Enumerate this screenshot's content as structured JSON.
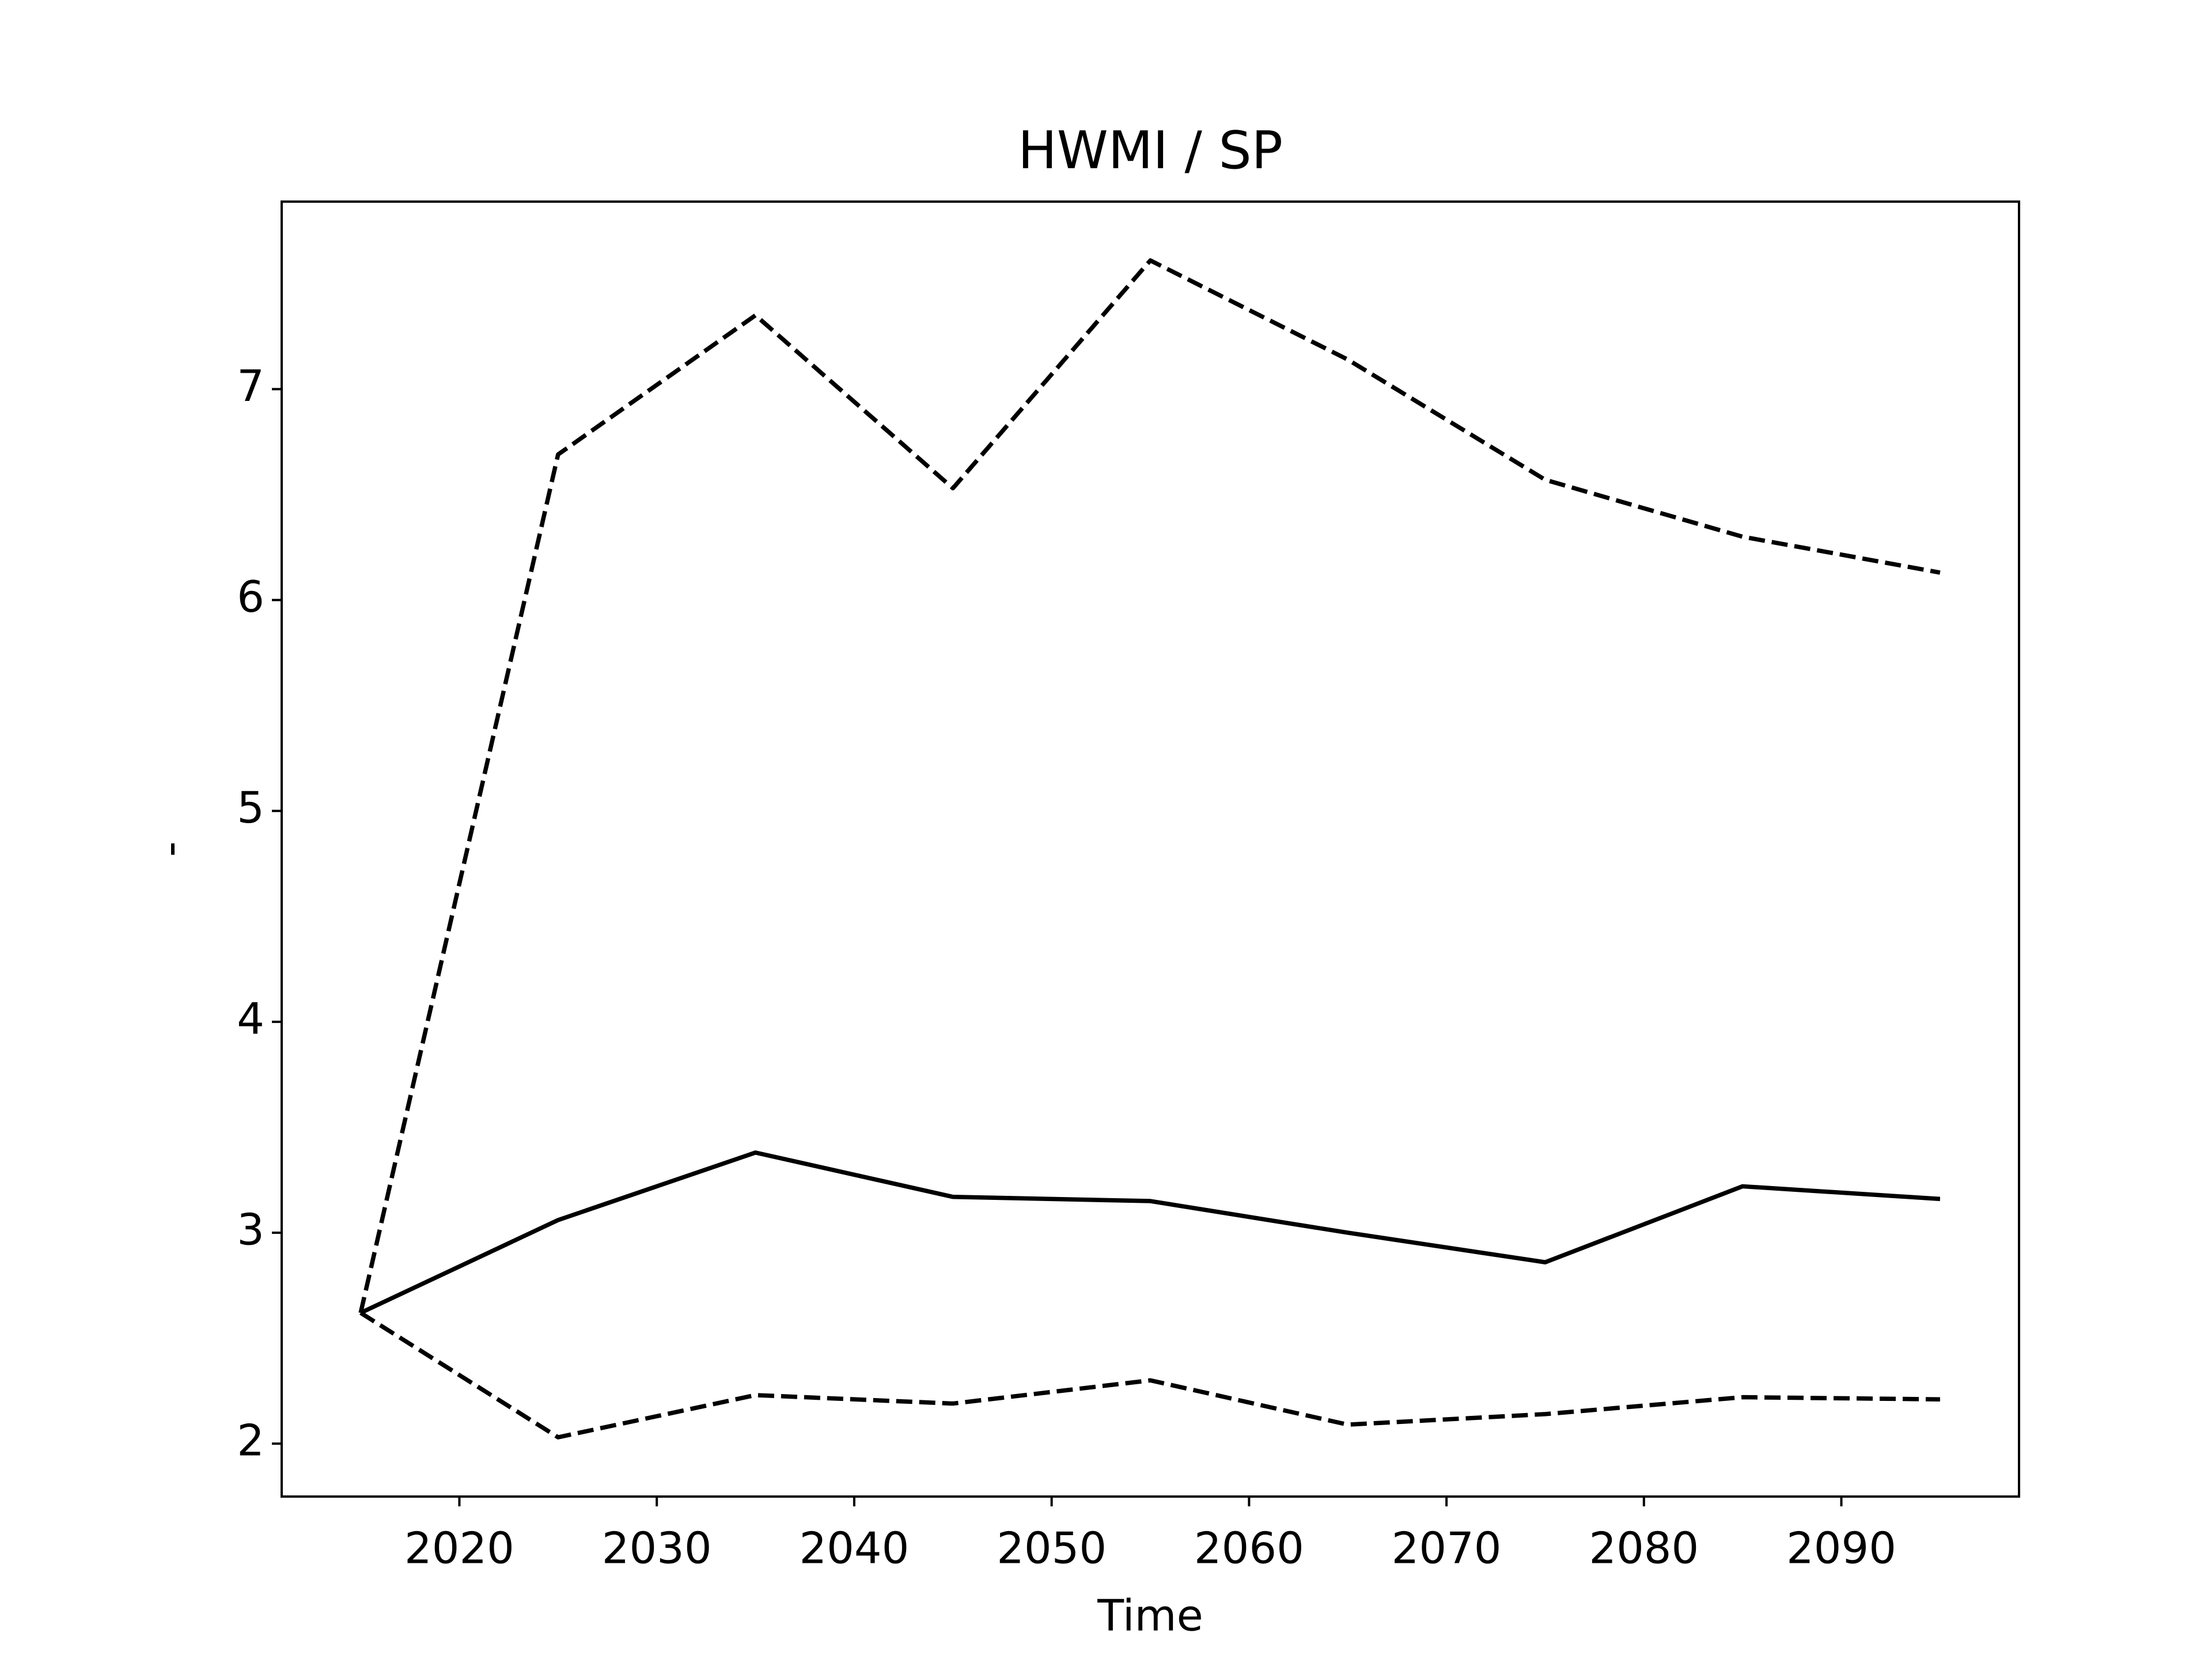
{
  "chart_data": {
    "type": "line",
    "title": "HWMI / SP",
    "xlabel": "Time",
    "ylabel": "-",
    "x": [
      2015,
      2025,
      2035,
      2045,
      2055,
      2065,
      2075,
      2085,
      2095
    ],
    "series": [
      {
        "color": "#000000",
        "style": "solid",
        "values": [
          2.62,
          3.06,
          3.38,
          3.17,
          3.15,
          3.0,
          2.86,
          3.22,
          3.16
        ]
      },
      {
        "color": "#000000",
        "style": "dashed",
        "values": [
          2.62,
          6.69,
          7.35,
          6.53,
          7.61,
          7.14,
          6.57,
          6.3,
          6.13
        ]
      },
      {
        "color": "#000000",
        "style": "dashed",
        "values": [
          2.62,
          2.03,
          2.23,
          2.19,
          2.3,
          2.09,
          2.14,
          2.22,
          2.21
        ]
      }
    ],
    "xlim": [
      2011,
      2099
    ],
    "xticks": [
      2020,
      2030,
      2040,
      2050,
      2060,
      2070,
      2080,
      2090
    ],
    "ylim": [
      1.749,
      7.889
    ],
    "yticks": [
      2,
      3,
      4,
      5,
      6,
      7
    ],
    "grid": false
  }
}
